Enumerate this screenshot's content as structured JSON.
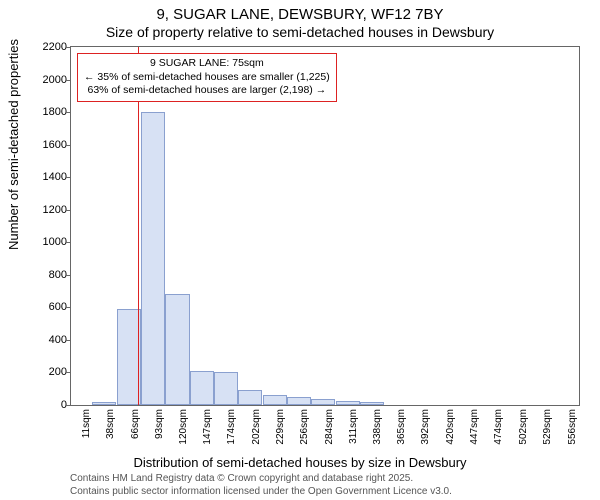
{
  "title_line1": "9, SUGAR LANE, DEWSBURY, WF12 7BY",
  "title_line2": "Size of property relative to semi-detached houses in Dewsbury",
  "ylabel": "Number of semi-detached properties",
  "xlabel": "Distribution of semi-detached houses by size in Dewsbury",
  "attribution_line1": "Contains HM Land Registry data © Crown copyright and database right 2025.",
  "attribution_line2": "Contains public sector information licensed under the Open Government Licence v3.0.",
  "chart": {
    "type": "histogram",
    "background_color": "#ffffff",
    "bar_fill": "#d7e1f4",
    "bar_border": "#8aa0cf",
    "axis_color": "#666666",
    "reference_line_color": "#dd2222",
    "annotation_border": "#dd2222",
    "title_fontsize": 15,
    "label_fontsize": 13,
    "tick_fontsize": 11,
    "ylim": [
      0,
      2200
    ],
    "ytick_step": 200,
    "yticks": [
      0,
      200,
      400,
      600,
      800,
      1000,
      1200,
      1400,
      1600,
      1800,
      2000,
      2200
    ],
    "x_domain": [
      0,
      570
    ],
    "x_tick_values": [
      11,
      38,
      66,
      93,
      120,
      147,
      174,
      202,
      229,
      256,
      284,
      311,
      338,
      365,
      392,
      420,
      447,
      474,
      502,
      529,
      556
    ],
    "x_tick_unit": "sqm",
    "bars": [
      {
        "x": 24,
        "w": 27,
        "value": 20
      },
      {
        "x": 52,
        "w": 27,
        "value": 590
      },
      {
        "x": 79,
        "w": 27,
        "value": 1800
      },
      {
        "x": 106,
        "w": 27,
        "value": 680
      },
      {
        "x": 133,
        "w": 27,
        "value": 210
      },
      {
        "x": 160,
        "w": 27,
        "value": 200
      },
      {
        "x": 187,
        "w": 27,
        "value": 90
      },
      {
        "x": 215,
        "w": 27,
        "value": 60
      },
      {
        "x": 242,
        "w": 27,
        "value": 50
      },
      {
        "x": 269,
        "w": 27,
        "value": 40
      },
      {
        "x": 297,
        "w": 27,
        "value": 25
      },
      {
        "x": 324,
        "w": 27,
        "value": 20
      }
    ],
    "reference_x": 75,
    "annotation": {
      "line1": "9 SUGAR LANE: 75sqm",
      "line2": "← 35% of semi-detached houses are smaller (1,225)",
      "line3": "63% of semi-detached houses are larger (2,198) →"
    }
  }
}
